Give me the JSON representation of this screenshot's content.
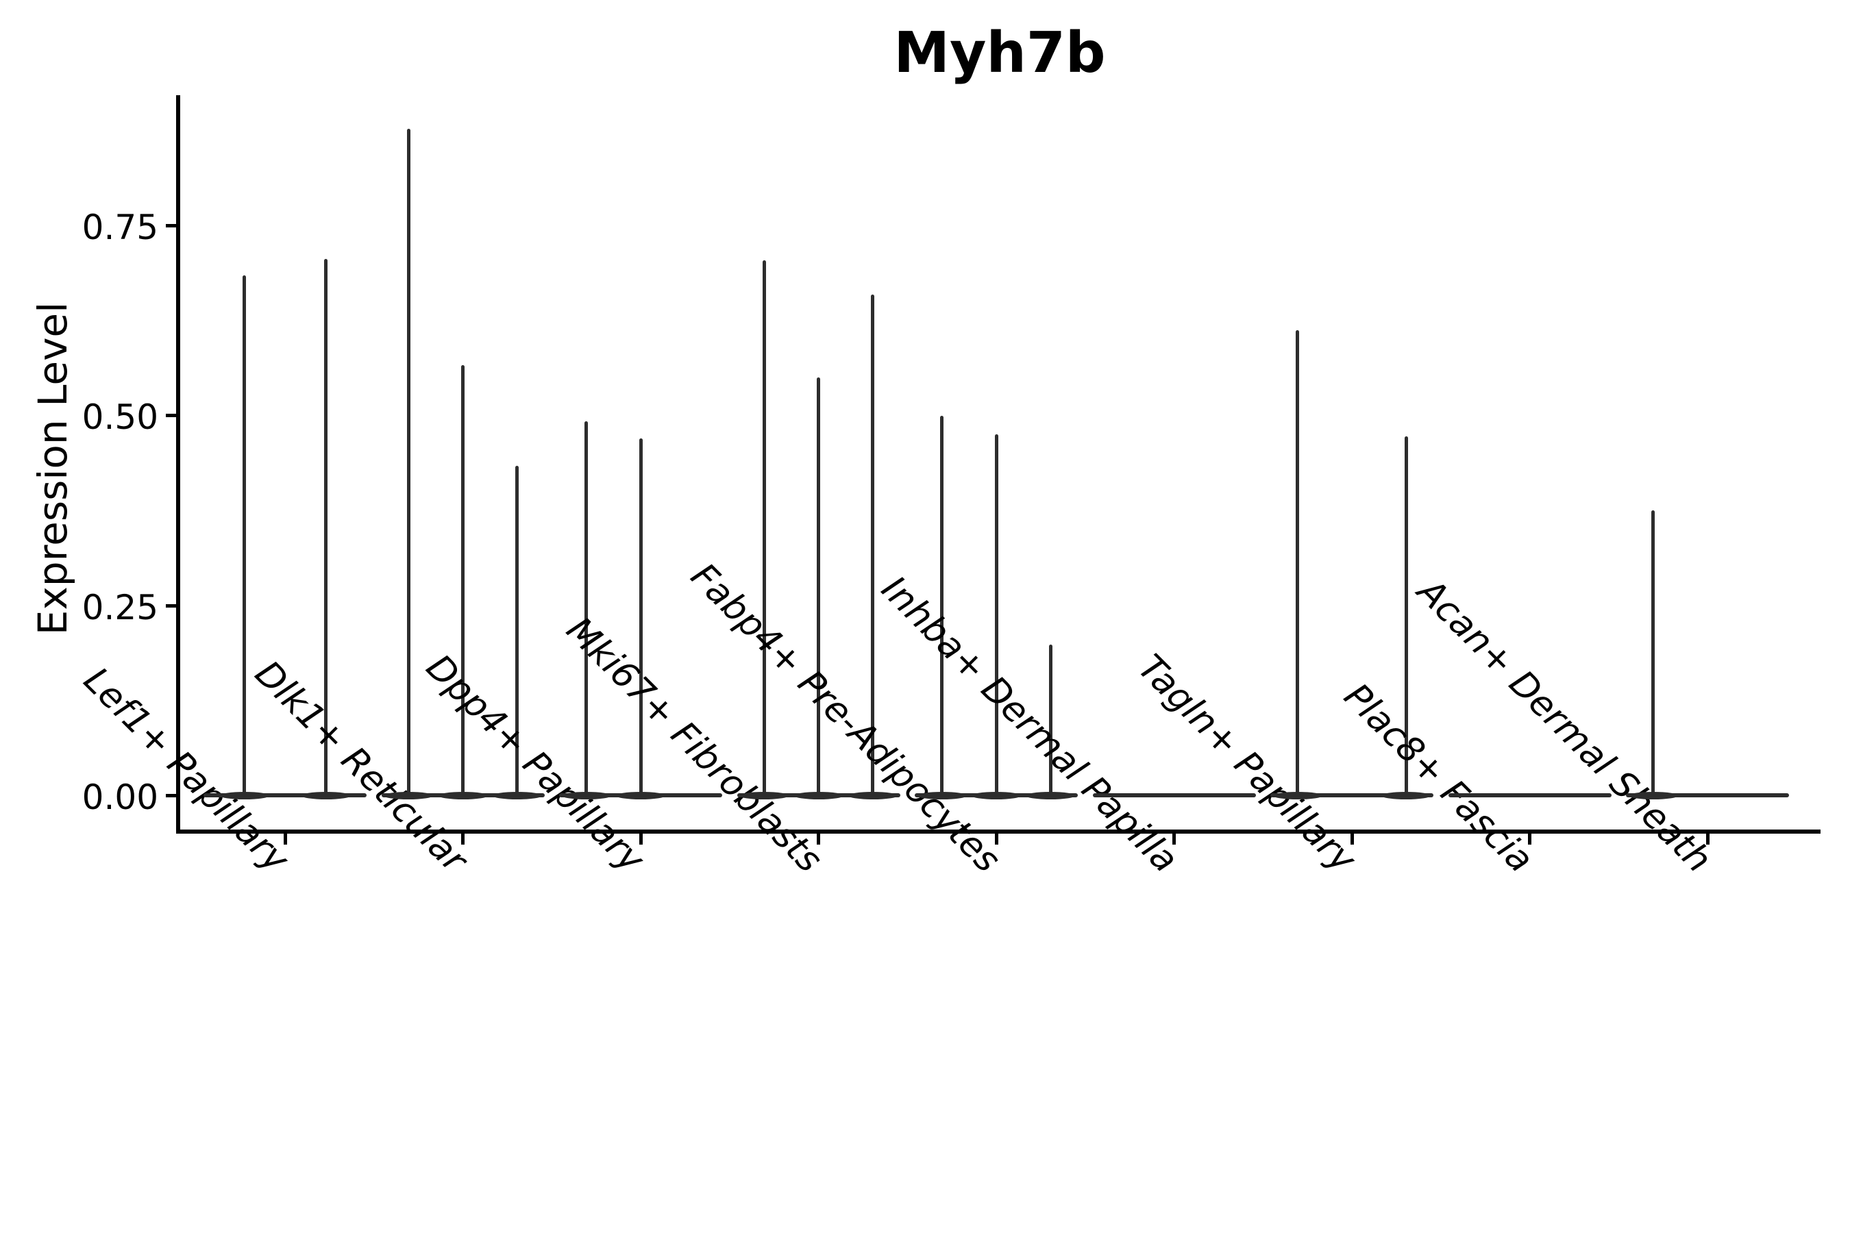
{
  "chart_data": {
    "type": "violin",
    "title": "Myh7b",
    "ylabel": "Expression Level",
    "xlabel": "",
    "yticks": [
      0,
      0.25,
      0.5,
      0.75
    ],
    "ytick_labels": [
      "0.00",
      "0.25",
      "0.50",
      "0.75"
    ],
    "ylim": [
      -0.047,
      0.921
    ],
    "grid": false,
    "legend": false,
    "xtick_rotation": 45,
    "violin_color": "#2d2d2d",
    "axis_color": "#000000",
    "categories": [
      "Lef1+ Papillary",
      "Dlk1+ Reticular",
      "Dpp4+ Papillary",
      "Mki67+ Fibroblasts",
      "Fabp4+ Pre-Adipocytes",
      "Inhba+ Dermal Papilla",
      "Tagln+ Papillary",
      "Plac8+ Fascia",
      "Acan+ Dermal Sheath"
    ],
    "groups": [
      {
        "category": "Lef1+ Papillary",
        "spike_values": [
          0.684,
          0.705
        ]
      },
      {
        "category": "Dlk1+ Reticular",
        "spike_values": [
          0.877,
          0.566,
          0.433
        ]
      },
      {
        "category": "Dpp4+ Papillary",
        "spike_values": [
          0.492,
          0.469,
          0
        ]
      },
      {
        "category": "Mki67+ Fibroblasts",
        "spike_values": [
          0.704,
          0.55,
          0.659
        ]
      },
      {
        "category": "Fabp4+ Pre-Adipocytes",
        "spike_values": [
          0.499,
          0.475,
          0.198
        ]
      },
      {
        "category": "Inhba+ Dermal Papilla",
        "spike_values": [
          0,
          0,
          0
        ]
      },
      {
        "category": "Tagln+ Papillary",
        "spike_values": [
          0.612,
          0,
          0.472
        ]
      },
      {
        "category": "Plac8+ Fascia",
        "spike_values": [
          0,
          0,
          0
        ]
      },
      {
        "category": "Acan+ Dermal Sheath",
        "spike_values": [
          0.375,
          0,
          0
        ]
      }
    ]
  }
}
